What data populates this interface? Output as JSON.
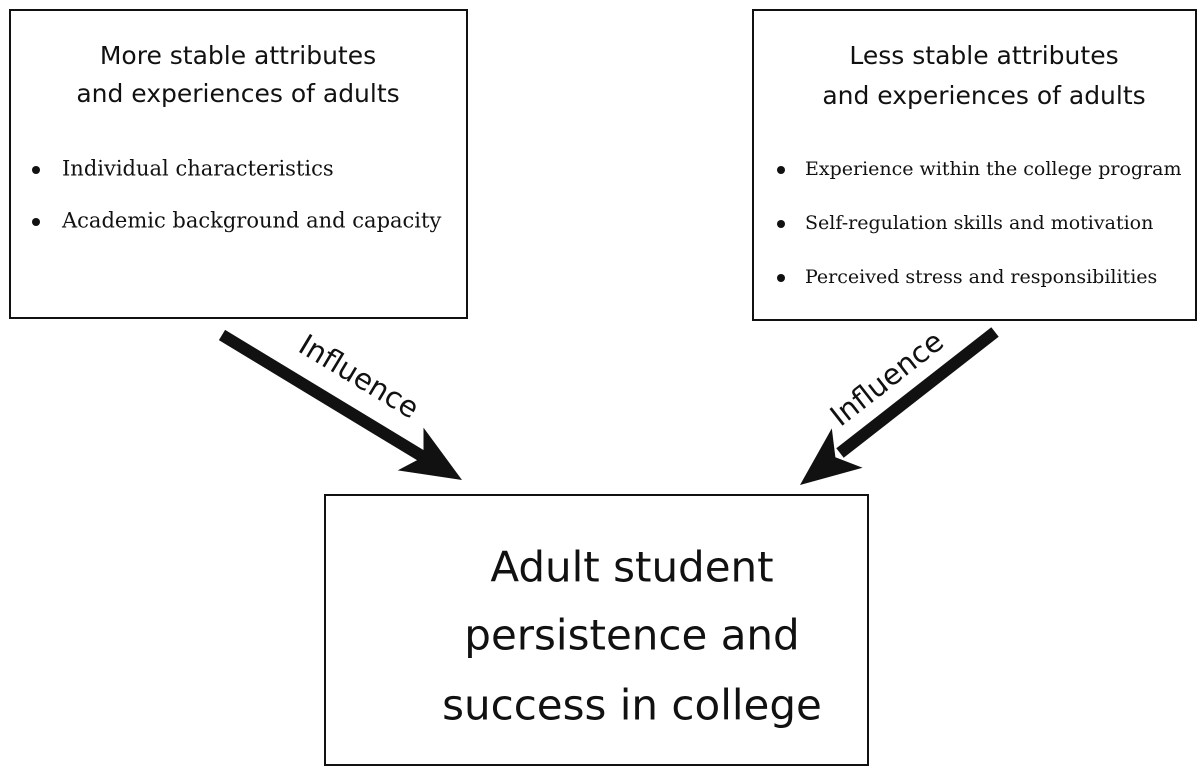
{
  "nodes": [
    {
      "title": [
        "More stable attributes",
        "and experiences of adults"
      ],
      "items": [
        "Individual characteristics",
        "Academic background and capacity"
      ]
    },
    {
      "title": [
        "Less stable attributes",
        "and experiences of adults"
      ],
      "items": [
        "Experience within the college program",
        "Self-regulation skills and motivation",
        "Perceived stress and responsibilities"
      ]
    },
    {
      "title": [
        "Adult student",
        "persistence and",
        "success in college"
      ]
    }
  ],
  "edges": [
    {
      "label": "Influence"
    },
    {
      "label": "Influence"
    }
  ]
}
